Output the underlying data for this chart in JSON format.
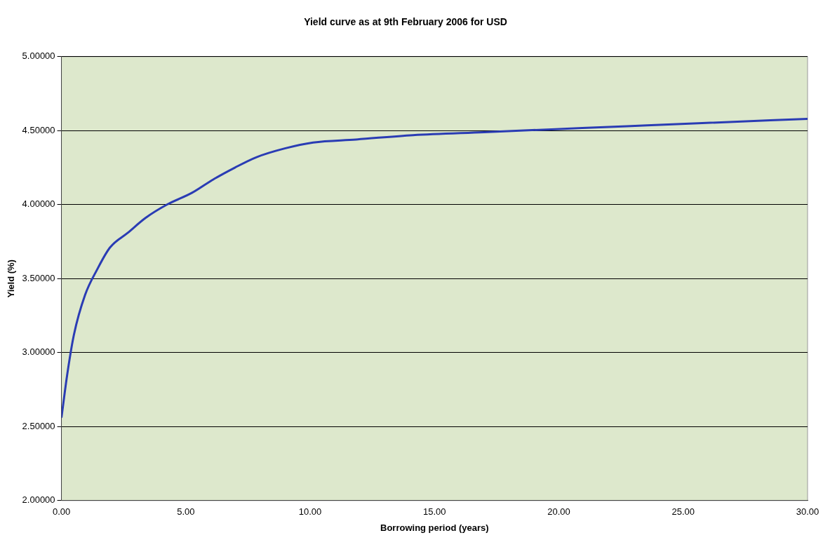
{
  "chart_data": {
    "type": "line",
    "title": "Yield curve as at 9th February 2006 for USD",
    "xlabel": "Borrowing period (years)",
    "ylabel": "Yield (%)",
    "x": [
      0,
      0.23,
      0.5,
      0.95,
      1.43,
      1.95,
      2.67,
      3.38,
      4.24,
      5.25,
      6.1,
      6.97,
      7.83,
      8.98,
      10.12,
      11.84,
      14.14,
      17,
      19.87,
      22.74,
      25.6,
      30
    ],
    "series": [
      {
        "color": "#2a3cb4",
        "values": [
          2.56,
          2.85,
          3.12,
          3.39,
          3.56,
          3.71,
          3.81,
          3.91,
          4.0,
          4.08,
          4.17,
          4.25,
          4.32,
          4.38,
          4.42,
          4.44,
          4.47,
          4.49,
          4.51,
          4.53,
          4.55,
          4.58
        ]
      }
    ],
    "xlim": [
      0,
      30
    ],
    "ylim": [
      2,
      5
    ],
    "xticks": [
      {
        "value": 0,
        "label": "0.00"
      },
      {
        "value": 5,
        "label": "5.00"
      },
      {
        "value": 10,
        "label": "10.00"
      },
      {
        "value": 15,
        "label": "15.00"
      },
      {
        "value": 20,
        "label": "20.00"
      },
      {
        "value": 25,
        "label": "25.00"
      },
      {
        "value": 30,
        "label": "30.00"
      }
    ],
    "yticks": [
      {
        "value": 2,
        "label": "2.00000"
      },
      {
        "value": 2.5,
        "label": "2.50000"
      },
      {
        "value": 3,
        "label": "3.00000"
      },
      {
        "value": 3.5,
        "label": "3.50000"
      },
      {
        "value": 4,
        "label": "4.00000"
      },
      {
        "value": 4.5,
        "label": "4.50000"
      },
      {
        "value": 5,
        "label": "5.00000"
      }
    ],
    "grid": "y",
    "legend": false,
    "marker": "none",
    "line_style": "solid"
  }
}
